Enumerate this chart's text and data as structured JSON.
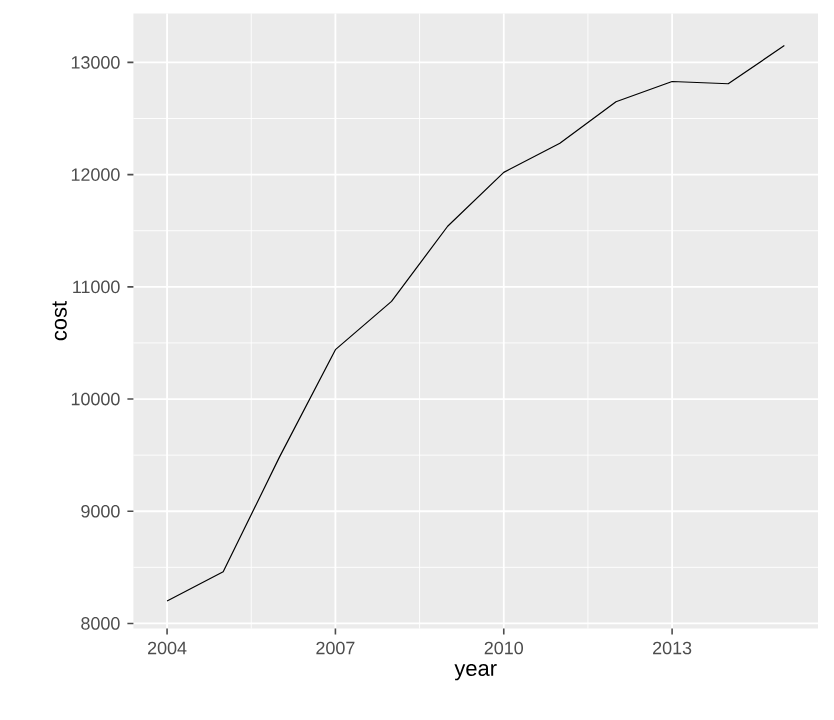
{
  "chart_data": {
    "type": "line",
    "xlabel": "year",
    "ylabel": "cost",
    "x": [
      2004,
      2005,
      2006,
      2007,
      2008,
      2009,
      2010,
      2011,
      2012,
      2013,
      2014,
      2015
    ],
    "values": [
      8200,
      8460,
      9480,
      10440,
      10870,
      11540,
      12020,
      12280,
      12650,
      12830,
      12810,
      13150
    ],
    "color": "#000000",
    "xlim": [
      2003.4,
      2015.6
    ],
    "ylim": [
      7954,
      13437
    ],
    "xticks": [
      2004,
      2007,
      2010,
      2013
    ],
    "yticks": [
      8000,
      9000,
      10000,
      11000,
      12000,
      13000
    ],
    "grid": true,
    "marker": "none",
    "line_style": "solid"
  }
}
